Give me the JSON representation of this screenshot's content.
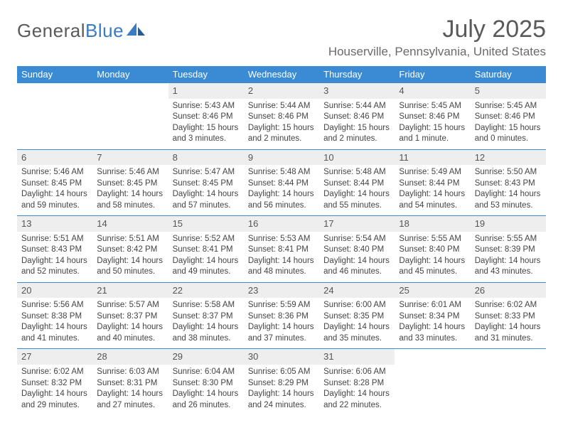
{
  "logo": {
    "word1": "General",
    "word2": "Blue"
  },
  "title": "July 2025",
  "location": "Houserville, Pennsylvania, United States",
  "colors": {
    "header_bg": "#3b8bd4",
    "header_text": "#ffffff",
    "daynum_bg": "#eeeeee",
    "rule": "#3b8bd4",
    "text": "#444444",
    "title_text": "#5a5a5a"
  },
  "day_names": [
    "Sunday",
    "Monday",
    "Tuesday",
    "Wednesday",
    "Thursday",
    "Friday",
    "Saturday"
  ],
  "first_weekday": 2,
  "days": [
    {
      "n": 1,
      "sunrise": "5:43 AM",
      "sunset": "8:46 PM",
      "daylight": "15 hours and 3 minutes."
    },
    {
      "n": 2,
      "sunrise": "5:44 AM",
      "sunset": "8:46 PM",
      "daylight": "15 hours and 2 minutes."
    },
    {
      "n": 3,
      "sunrise": "5:44 AM",
      "sunset": "8:46 PM",
      "daylight": "15 hours and 2 minutes."
    },
    {
      "n": 4,
      "sunrise": "5:45 AM",
      "sunset": "8:46 PM",
      "daylight": "15 hours and 1 minute."
    },
    {
      "n": 5,
      "sunrise": "5:45 AM",
      "sunset": "8:46 PM",
      "daylight": "15 hours and 0 minutes."
    },
    {
      "n": 6,
      "sunrise": "5:46 AM",
      "sunset": "8:45 PM",
      "daylight": "14 hours and 59 minutes."
    },
    {
      "n": 7,
      "sunrise": "5:46 AM",
      "sunset": "8:45 PM",
      "daylight": "14 hours and 58 minutes."
    },
    {
      "n": 8,
      "sunrise": "5:47 AM",
      "sunset": "8:45 PM",
      "daylight": "14 hours and 57 minutes."
    },
    {
      "n": 9,
      "sunrise": "5:48 AM",
      "sunset": "8:44 PM",
      "daylight": "14 hours and 56 minutes."
    },
    {
      "n": 10,
      "sunrise": "5:48 AM",
      "sunset": "8:44 PM",
      "daylight": "14 hours and 55 minutes."
    },
    {
      "n": 11,
      "sunrise": "5:49 AM",
      "sunset": "8:44 PM",
      "daylight": "14 hours and 54 minutes."
    },
    {
      "n": 12,
      "sunrise": "5:50 AM",
      "sunset": "8:43 PM",
      "daylight": "14 hours and 53 minutes."
    },
    {
      "n": 13,
      "sunrise": "5:51 AM",
      "sunset": "8:43 PM",
      "daylight": "14 hours and 52 minutes."
    },
    {
      "n": 14,
      "sunrise": "5:51 AM",
      "sunset": "8:42 PM",
      "daylight": "14 hours and 50 minutes."
    },
    {
      "n": 15,
      "sunrise": "5:52 AM",
      "sunset": "8:41 PM",
      "daylight": "14 hours and 49 minutes."
    },
    {
      "n": 16,
      "sunrise": "5:53 AM",
      "sunset": "8:41 PM",
      "daylight": "14 hours and 48 minutes."
    },
    {
      "n": 17,
      "sunrise": "5:54 AM",
      "sunset": "8:40 PM",
      "daylight": "14 hours and 46 minutes."
    },
    {
      "n": 18,
      "sunrise": "5:55 AM",
      "sunset": "8:40 PM",
      "daylight": "14 hours and 45 minutes."
    },
    {
      "n": 19,
      "sunrise": "5:55 AM",
      "sunset": "8:39 PM",
      "daylight": "14 hours and 43 minutes."
    },
    {
      "n": 20,
      "sunrise": "5:56 AM",
      "sunset": "8:38 PM",
      "daylight": "14 hours and 41 minutes."
    },
    {
      "n": 21,
      "sunrise": "5:57 AM",
      "sunset": "8:37 PM",
      "daylight": "14 hours and 40 minutes."
    },
    {
      "n": 22,
      "sunrise": "5:58 AM",
      "sunset": "8:37 PM",
      "daylight": "14 hours and 38 minutes."
    },
    {
      "n": 23,
      "sunrise": "5:59 AM",
      "sunset": "8:36 PM",
      "daylight": "14 hours and 37 minutes."
    },
    {
      "n": 24,
      "sunrise": "6:00 AM",
      "sunset": "8:35 PM",
      "daylight": "14 hours and 35 minutes."
    },
    {
      "n": 25,
      "sunrise": "6:01 AM",
      "sunset": "8:34 PM",
      "daylight": "14 hours and 33 minutes."
    },
    {
      "n": 26,
      "sunrise": "6:02 AM",
      "sunset": "8:33 PM",
      "daylight": "14 hours and 31 minutes."
    },
    {
      "n": 27,
      "sunrise": "6:02 AM",
      "sunset": "8:32 PM",
      "daylight": "14 hours and 29 minutes."
    },
    {
      "n": 28,
      "sunrise": "6:03 AM",
      "sunset": "8:31 PM",
      "daylight": "14 hours and 27 minutes."
    },
    {
      "n": 29,
      "sunrise": "6:04 AM",
      "sunset": "8:30 PM",
      "daylight": "14 hours and 26 minutes."
    },
    {
      "n": 30,
      "sunrise": "6:05 AM",
      "sunset": "8:29 PM",
      "daylight": "14 hours and 24 minutes."
    },
    {
      "n": 31,
      "sunrise": "6:06 AM",
      "sunset": "8:28 PM",
      "daylight": "14 hours and 22 minutes."
    }
  ],
  "labels": {
    "sunrise": "Sunrise:",
    "sunset": "Sunset:",
    "daylight": "Daylight:"
  }
}
